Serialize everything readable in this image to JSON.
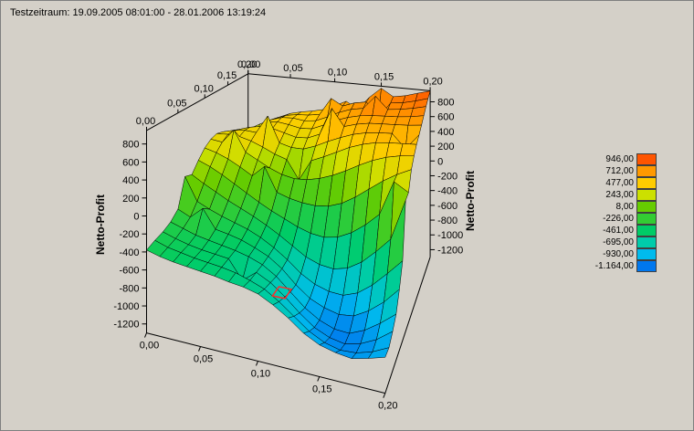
{
  "window": {
    "bg_color": "#d4d0c8",
    "title": "Testzeitraum: 19.09.2005 08:01:00 - 28.01.2006 13:19:24"
  },
  "chart_data": {
    "type": "surface3d",
    "title": "Testzeitraum: 19.09.2005 08:01:00 - 28.01.2006 13:19:24",
    "x_axis": {
      "min": 0.0,
      "max": 0.2,
      "tick_labels": [
        "0,00",
        "0,05",
        "0,10",
        "0,15",
        "0,20"
      ]
    },
    "y_axis": {
      "min": 0.0,
      "max": 0.2,
      "tick_labels": [
        "0,00",
        "0,05",
        "0,10",
        "0,15",
        "0,20"
      ]
    },
    "z_axis": {
      "title": "Netto-Profit",
      "min": -1300,
      "max": 950,
      "tick_values": [
        800,
        600,
        400,
        200,
        0,
        -200,
        -400,
        -600,
        -800,
        -1000,
        -1200
      ],
      "tick_labels": [
        "800",
        "600",
        "400",
        "200",
        "0",
        "-200",
        "-400",
        "-600",
        "-800",
        "-1000",
        "-1200"
      ]
    },
    "legend": {
      "labels": [
        "946,00",
        "712,00",
        "477,00",
        "243,00",
        "8,00",
        "-226,00",
        "-461,00",
        "-695,00",
        "-930,00",
        "-1.164,00"
      ],
      "values": [
        946,
        712,
        477,
        243,
        8,
        -226,
        -461,
        -695,
        -930,
        -1164
      ],
      "colors": [
        "#ff5500",
        "#ff9900",
        "#ffcc00",
        "#cce000",
        "#66cc00",
        "#33cc33",
        "#00cc66",
        "#00ccaa",
        "#00bbee",
        "#0077ee"
      ]
    },
    "surface": {
      "nx": 17,
      "ny": 17,
      "values": [
        [
          -380,
          -420,
          -450,
          -470,
          -490,
          -510,
          -540,
          -560,
          -600,
          -680,
          -780,
          -900,
          -980,
          -1020,
          -1040,
          -1000,
          -950
        ],
        [
          -350,
          -400,
          -430,
          -460,
          -480,
          -500,
          -530,
          -580,
          -640,
          -740,
          -860,
          -980,
          -1060,
          -1100,
          -1090,
          -1040,
          -960
        ],
        [
          -330,
          -380,
          -420,
          -450,
          -470,
          -490,
          -700,
          -580,
          -660,
          -780,
          -920,
          -1040,
          -1110,
          -1140,
          -1100,
          -1020,
          -900
        ],
        [
          -290,
          -340,
          -390,
          -420,
          -450,
          -480,
          -520,
          -580,
          -680,
          -820,
          -960,
          -1060,
          -1120,
          -1130,
          -1060,
          -950,
          -820
        ],
        [
          -210,
          -280,
          -150,
          -370,
          -400,
          -440,
          -500,
          -570,
          -680,
          -830,
          -950,
          -1020,
          -1060,
          -1040,
          -950,
          -820,
          -650
        ],
        [
          120,
          -160,
          -230,
          -290,
          -340,
          -390,
          -460,
          -550,
          -660,
          -790,
          -880,
          -930,
          -940,
          -880,
          -760,
          -600,
          -430
        ],
        [
          80,
          -10,
          -90,
          -170,
          -240,
          -310,
          -390,
          -480,
          -580,
          -680,
          -740,
          -760,
          -720,
          -620,
          -470,
          -300,
          160
        ],
        [
          200,
          140,
          60,
          -30,
          -120,
          -210,
          -290,
          -360,
          -430,
          -480,
          -500,
          -470,
          -390,
          -270,
          -120,
          280,
          180
        ],
        [
          300,
          260,
          200,
          120,
          30,
          170,
          -130,
          -180,
          -210,
          -220,
          -200,
          -140,
          -40,
          80,
          200,
          300,
          380
        ],
        [
          360,
          340,
          520,
          250,
          170,
          90,
          30,
          0,
          10,
          50,
          110,
          190,
          280,
          360,
          420,
          460,
          480
        ],
        [
          380,
          390,
          380,
          340,
          280,
          210,
          160,
          -80,
          190,
          260,
          340,
          420,
          480,
          520,
          540,
          550,
          560
        ],
        [
          350,
          390,
          410,
          400,
          640,
          300,
          260,
          260,
          320,
          400,
          470,
          530,
          570,
          590,
          600,
          430,
          620
        ],
        [
          290,
          350,
          400,
          430,
          420,
          380,
          340,
          350,
          420,
          780,
          560,
          610,
          640,
          650,
          660,
          670,
          690
        ],
        [
          220,
          300,
          180,
          440,
          460,
          440,
          410,
          420,
          490,
          570,
          630,
          670,
          690,
          700,
          710,
          730,
          760
        ],
        [
          160,
          250,
          340,
          420,
          470,
          480,
          460,
          480,
          550,
          630,
          690,
          720,
          900,
          740,
          760,
          790,
          830
        ],
        [
          120,
          210,
          300,
          390,
          450,
          480,
          490,
          520,
          760,
          670,
          730,
          760,
          560,
          780,
          800,
          840,
          890
        ],
        [
          100,
          180,
          270,
          360,
          430,
          470,
          500,
          540,
          610,
          690,
          600,
          780,
          920,
          820,
          850,
          900,
          946
        ]
      ]
    },
    "marker": {
      "px": 0.5,
      "py": 0.25,
      "z": -950,
      "color": "#ff2a2a"
    }
  }
}
